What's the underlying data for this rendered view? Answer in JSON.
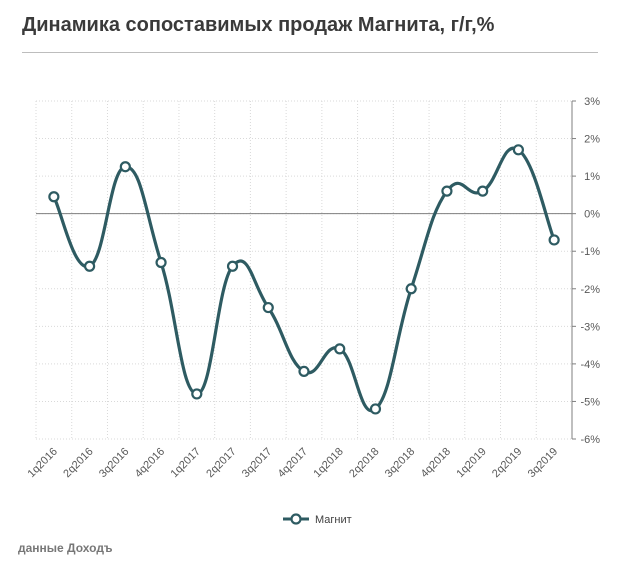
{
  "page": {
    "title": "Динамика сопоставимых продаж Магнита, г/г,%",
    "source": "данные Доходъ"
  },
  "chart_data": {
    "type": "line",
    "title": "Динамика сопоставимых продаж Магнита, г/г,%",
    "xlabel": "",
    "ylabel": "",
    "categories": [
      "1q2016",
      "2q2016",
      "3q2016",
      "4q2016",
      "1q2017",
      "2q2017",
      "3q2017",
      "4q2017",
      "1q2018",
      "2q2018",
      "3q2018",
      "4q2018",
      "1q2019",
      "2q2019",
      "3q2019"
    ],
    "series": [
      {
        "name": "Магнит",
        "color": "#2e5b62",
        "values": [
          0.45,
          -1.4,
          1.25,
          -1.3,
          -4.8,
          -1.4,
          -2.5,
          -4.2,
          -3.6,
          -5.2,
          -2.0,
          0.6,
          0.6,
          1.7,
          -0.7
        ]
      }
    ],
    "ylim": [
      -6,
      3
    ],
    "yticks": [
      3,
      2,
      1,
      0,
      -1,
      -2,
      -3,
      -4,
      -5,
      -6
    ],
    "ytick_labels": [
      "3%",
      "2%",
      "1%",
      "0%",
      "-1%",
      "-2%",
      "-3%",
      "-4%",
      "-5%",
      "-6%"
    ],
    "y_axis_position": "right",
    "grid": true,
    "legend_position": "bottom"
  }
}
